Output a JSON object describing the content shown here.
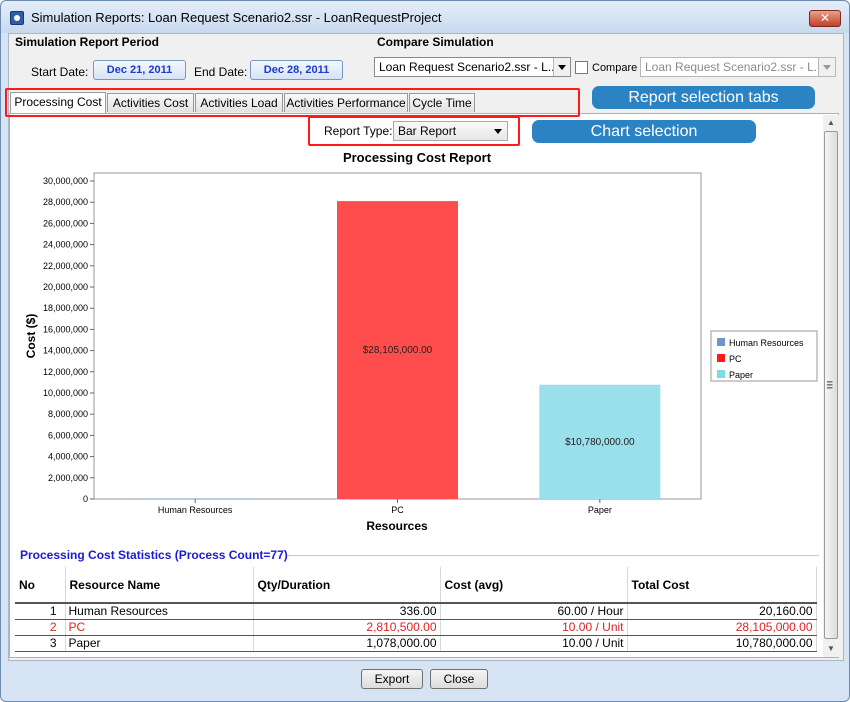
{
  "window": {
    "title": "Simulation Reports: Loan Request Scenario2.ssr - LoanRequestProject",
    "close_glyph": "✕"
  },
  "period": {
    "group_label": "Simulation Report Period",
    "start_label": "Start Date:",
    "start_value": "Dec 21, 2011",
    "end_label": "End Date:",
    "end_value": "Dec 28, 2011"
  },
  "compare": {
    "group_label": "Compare Simulation",
    "scenario_value": "Loan Request Scenario2.ssr - L...",
    "checkbox_label": "Compare",
    "compare_value": "Loan Request Scenario2.ssr - L..."
  },
  "tabs": [
    {
      "label": "Processing Cost",
      "active": true
    },
    {
      "label": "Activities Cost"
    },
    {
      "label": "Activities Load"
    },
    {
      "label": "Activities Performance"
    },
    {
      "label": "Cycle Time"
    }
  ],
  "annotations": {
    "tabs_callout": "Report selection tabs",
    "chart_callout": "Chart selection"
  },
  "report_type": {
    "label": "Report Type:",
    "value": "Bar Report"
  },
  "chart_data": {
    "type": "bar",
    "title": "Processing Cost Report",
    "xlabel": "Resources",
    "ylabel": "Cost ($)",
    "categories": [
      "Human Resources",
      "PC",
      "Paper"
    ],
    "values": [
      20160,
      28105000,
      10780000
    ],
    "data_labels": [
      "",
      "$28,105,000.00",
      "$10,780,000.00"
    ],
    "colors": [
      "#6699cc",
      "#ff4d4d",
      "#99e0ea"
    ],
    "ylim": [
      0,
      30000000
    ],
    "yticks": [
      0,
      2000000,
      4000000,
      6000000,
      8000000,
      10000000,
      12000000,
      14000000,
      16000000,
      18000000,
      20000000,
      22000000,
      24000000,
      26000000,
      28000000,
      30000000
    ],
    "ytick_labels": [
      "0",
      "2,000,000",
      "4,000,000",
      "6,000,000",
      "8,000,000",
      "10,000,000",
      "12,000,000",
      "14,000,000",
      "16,000,000",
      "18,000,000",
      "20,000,000",
      "22,000,000",
      "24,000,000",
      "26,000,000",
      "28,000,000",
      "30,000,000"
    ],
    "legend": [
      {
        "name": "Human Resources",
        "color": "#6699cc"
      },
      {
        "name": "PC",
        "color": "#ff1a1a"
      },
      {
        "name": "Paper",
        "color": "#7fd9e6"
      }
    ],
    "legend_position": "right",
    "grid": false
  },
  "stats": {
    "title": "Processing Cost Statistics (Process Count=77)",
    "headers": [
      "No",
      "Resource Name",
      "Qty/Duration",
      "Cost (avg)",
      "Total Cost"
    ],
    "rows": [
      {
        "no": "1",
        "name": "Human Resources",
        "qty": "336.00",
        "cost": "60.00 / Hour",
        "total": "20,160.00",
        "highlight": false
      },
      {
        "no": "2",
        "name": "PC",
        "qty": "2,810,500.00",
        "cost": "10.00 / Unit",
        "total": "28,105,000.00",
        "highlight": true
      },
      {
        "no": "3",
        "name": "Paper",
        "qty": "1,078,000.00",
        "cost": "10.00 / Unit",
        "total": "10,780,000.00",
        "highlight": false
      }
    ]
  },
  "buttons": {
    "export": "Export",
    "close": "Close"
  }
}
